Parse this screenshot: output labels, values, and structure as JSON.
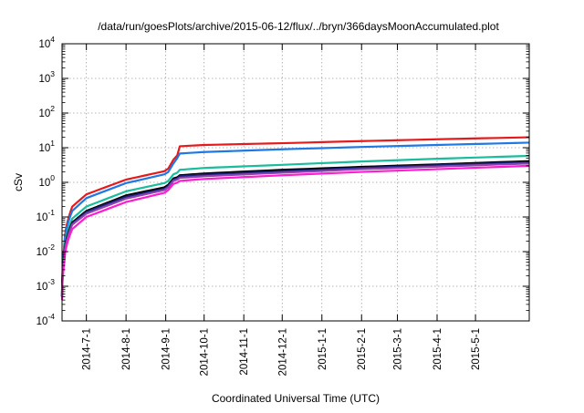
{
  "chart_data": {
    "type": "line",
    "title": "/data/run/goesPlots/archive/2015-06-12/flux/../bryn/366daysMoonAccumulated.plot",
    "xlabel": "Coordinated Universal Time (UTC)",
    "ylabel": "cSv",
    "yscale": "log",
    "ylim": [
      0.0001,
      10000
    ],
    "xlim": [
      "2014-06-12",
      "2015-06-12"
    ],
    "grid": true,
    "y_ticks": [
      {
        "base": "10",
        "exp": "-4",
        "value": 0.0001
      },
      {
        "base": "10",
        "exp": "-3",
        "value": 0.001
      },
      {
        "base": "10",
        "exp": "-2",
        "value": 0.01
      },
      {
        "base": "10",
        "exp": "-1",
        "value": 0.1
      },
      {
        "base": "10",
        "exp": "0",
        "value": 1
      },
      {
        "base": "10",
        "exp": "1",
        "value": 10
      },
      {
        "base": "10",
        "exp": "2",
        "value": 100
      },
      {
        "base": "10",
        "exp": "3",
        "value": 1000
      },
      {
        "base": "10",
        "exp": "4",
        "value": 10000
      }
    ],
    "x_ticks": [
      {
        "label": "2014-7-1",
        "date": "2014-07-01"
      },
      {
        "label": "2014-8-1",
        "date": "2014-08-01"
      },
      {
        "label": "2014-9-1",
        "date": "2014-09-01"
      },
      {
        "label": "2014-10-1",
        "date": "2014-10-01"
      },
      {
        "label": "2014-11-1",
        "date": "2014-11-01"
      },
      {
        "label": "2014-12-1",
        "date": "2014-12-01"
      },
      {
        "label": "2015-1-1",
        "date": "2015-01-01"
      },
      {
        "label": "2015-2-1",
        "date": "2015-02-01"
      },
      {
        "label": "2015-3-1",
        "date": "2015-03-01"
      },
      {
        "label": "2015-4-1",
        "date": "2015-04-01"
      },
      {
        "label": "2015-5-1",
        "date": "2015-05-01"
      }
    ],
    "series": [
      {
        "color": "#e41a1c",
        "x": [
          "2014-06-12",
          "2014-06-14",
          "2014-06-20",
          "2014-07-01",
          "2014-08-01",
          "2014-08-31",
          "2014-09-03",
          "2014-09-07",
          "2014-09-10",
          "2014-09-12",
          "2014-10-01",
          "2014-12-01",
          "2015-02-01",
          "2015-04-01",
          "2015-06-12"
        ],
        "y": [
          0.0005,
          0.02,
          0.2,
          0.45,
          1.2,
          2.1,
          2.5,
          4.5,
          6.0,
          11.0,
          12.0,
          13.5,
          15.5,
          17.5,
          20.0
        ]
      },
      {
        "color": "#1f78e4",
        "x": [
          "2014-06-12",
          "2014-06-14",
          "2014-06-20",
          "2014-07-01",
          "2014-08-01",
          "2014-08-31",
          "2014-09-03",
          "2014-09-07",
          "2014-09-10",
          "2014-09-12",
          "2014-10-01",
          "2014-12-01",
          "2015-02-01",
          "2015-04-01",
          "2015-06-12"
        ],
        "y": [
          0.0005,
          0.018,
          0.15,
          0.35,
          0.95,
          1.7,
          2.0,
          3.5,
          5.0,
          6.8,
          7.5,
          9.0,
          10.5,
          12.0,
          14.0
        ]
      },
      {
        "color": "#1abc9c",
        "x": [
          "2014-06-12",
          "2014-06-14",
          "2014-06-20",
          "2014-07-01",
          "2014-08-01",
          "2014-08-31",
          "2014-09-03",
          "2014-09-07",
          "2014-09-10",
          "2014-09-12",
          "2014-10-01",
          "2014-12-01",
          "2015-02-01",
          "2015-04-01",
          "2015-06-12"
        ],
        "y": [
          0.0005,
          0.012,
          0.09,
          0.2,
          0.55,
          0.95,
          1.1,
          1.7,
          1.9,
          2.3,
          2.6,
          3.2,
          4.0,
          4.8,
          5.8
        ]
      },
      {
        "color": "#000000",
        "x": [
          "2014-06-12",
          "2014-06-14",
          "2014-06-20",
          "2014-07-01",
          "2014-08-01",
          "2014-08-31",
          "2014-09-03",
          "2014-09-07",
          "2014-09-10",
          "2014-09-12",
          "2014-10-01",
          "2014-12-01",
          "2015-02-01",
          "2015-04-01",
          "2015-06-12"
        ],
        "y": [
          0.0005,
          0.01,
          0.07,
          0.15,
          0.42,
          0.72,
          0.85,
          1.3,
          1.4,
          1.6,
          1.8,
          2.3,
          2.8,
          3.3,
          4.1
        ]
      },
      {
        "color": "#1a237e",
        "x": [
          "2014-06-12",
          "2014-06-14",
          "2014-06-20",
          "2014-07-01",
          "2014-08-01",
          "2014-08-31",
          "2014-09-03",
          "2014-09-07",
          "2014-09-10",
          "2014-09-12",
          "2014-10-01",
          "2014-12-01",
          "2015-02-01",
          "2015-04-01",
          "2015-06-12"
        ],
        "y": [
          0.0005,
          0.009,
          0.065,
          0.14,
          0.38,
          0.65,
          0.78,
          1.2,
          1.3,
          1.5,
          1.65,
          2.1,
          2.6,
          3.1,
          3.8
        ]
      },
      {
        "color": "#8e44ad",
        "x": [
          "2014-06-12",
          "2014-06-14",
          "2014-06-20",
          "2014-07-01",
          "2014-08-01",
          "2014-08-31",
          "2014-09-03",
          "2014-09-07",
          "2014-09-10",
          "2014-09-12",
          "2014-10-01",
          "2014-12-01",
          "2015-02-01",
          "2015-04-01",
          "2015-06-12"
        ],
        "y": [
          0.0005,
          0.008,
          0.06,
          0.125,
          0.34,
          0.6,
          0.72,
          1.1,
          1.2,
          1.35,
          1.5,
          1.9,
          2.4,
          2.85,
          3.5
        ]
      },
      {
        "color": "#ff1dce",
        "x": [
          "2014-06-12",
          "2014-06-14",
          "2014-06-20",
          "2014-07-01",
          "2014-08-01",
          "2014-08-31",
          "2014-09-03",
          "2014-09-07",
          "2014-09-10",
          "2014-09-12",
          "2014-10-01",
          "2014-12-01",
          "2015-02-01",
          "2015-04-01",
          "2015-06-12"
        ],
        "y": [
          0.0004,
          0.006,
          0.045,
          0.1,
          0.27,
          0.5,
          0.6,
          0.9,
          0.98,
          1.1,
          1.25,
          1.6,
          2.0,
          2.4,
          3.0
        ]
      }
    ]
  }
}
